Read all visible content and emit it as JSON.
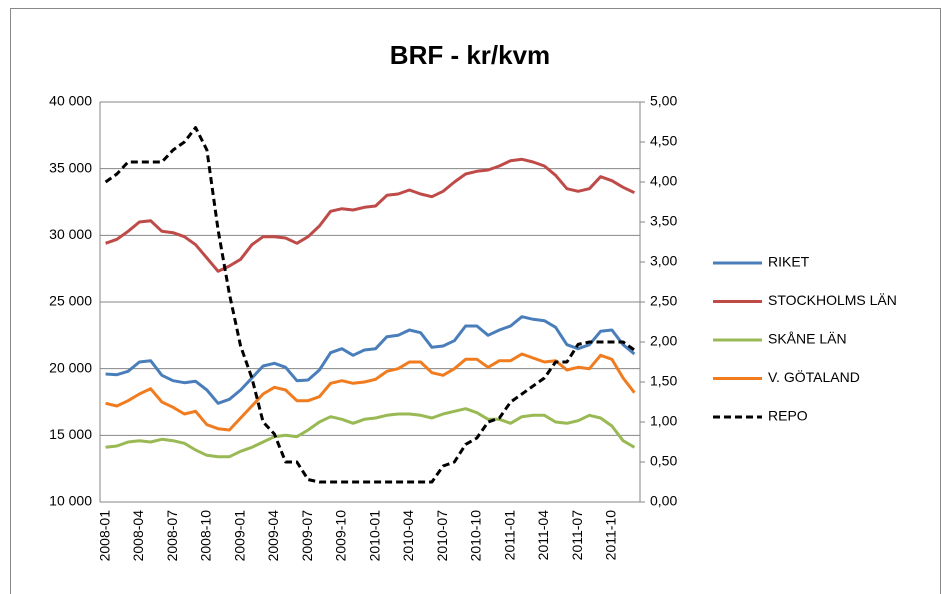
{
  "chart_data": {
    "type": "line",
    "title": "BRF - kr/kvm",
    "categories": [
      "2008-01",
      null,
      null,
      "2008-04",
      null,
      null,
      "2008-07",
      null,
      null,
      "2008-10",
      null,
      null,
      "2009-01",
      null,
      null,
      "2009-04",
      null,
      null,
      "2009-07",
      null,
      null,
      "2009-10",
      null,
      null,
      "2010-01",
      null,
      null,
      "2010-04",
      null,
      null,
      "2010-07",
      null,
      null,
      "2010-10",
      null,
      null,
      "2011-01",
      null,
      null,
      "2011-04",
      null,
      null,
      "2011-07",
      null,
      null,
      "2011-10",
      null,
      null
    ],
    "series": [
      {
        "name": "RIKET",
        "color": "#4a7ebb",
        "values": [
          19600,
          19550,
          19800,
          20500,
          20600,
          19500,
          19100,
          18950,
          19050,
          18400,
          17400,
          17700,
          18400,
          19300,
          20200,
          20400,
          20100,
          19100,
          19150,
          19900,
          21200,
          21500,
          21000,
          21400,
          21500,
          22400,
          22500,
          22900,
          22700,
          21600,
          21700,
          22100,
          23200,
          23200,
          22500,
          22900,
          23200,
          23900,
          23700,
          23600,
          23100,
          21800,
          21500,
          21800,
          22800,
          22900,
          21800,
          21100
        ]
      },
      {
        "name": "STOCKHOLMS LÄN",
        "color": "#be4b48",
        "values": [
          29400,
          29700,
          30300,
          31000,
          31100,
          30300,
          30200,
          29900,
          29300,
          28300,
          27300,
          27700,
          28200,
          29300,
          29900,
          29900,
          29800,
          29400,
          29900,
          30700,
          31800,
          32000,
          31900,
          32100,
          32200,
          33000,
          33100,
          33400,
          33100,
          32900,
          33300,
          34000,
          34600,
          34800,
          34900,
          35200,
          35600,
          35700,
          35500,
          35200,
          34500,
          33500,
          33300,
          33500,
          34400,
          34100,
          33600,
          33200
        ]
      },
      {
        "name": "SKÅNE LÄN",
        "color": "#98b954",
        "values": [
          14100,
          14200,
          14500,
          14600,
          14500,
          14700,
          14600,
          14400,
          13900,
          13500,
          13400,
          13400,
          13800,
          14100,
          14500,
          14900,
          15000,
          14900,
          15400,
          16000,
          16400,
          16200,
          15900,
          16200,
          16300,
          16500,
          16600,
          16600,
          16500,
          16300,
          16600,
          16800,
          17000,
          16700,
          16200,
          16200,
          15900,
          16400,
          16500,
          16500,
          16000,
          15900,
          16100,
          16500,
          16300,
          15700,
          14600,
          14100
        ]
      },
      {
        "name": "V. GÖTALAND",
        "color": "#f07c1f",
        "values": [
          17400,
          17200,
          17600,
          18100,
          18500,
          17500,
          17100,
          16600,
          16800,
          15800,
          15500,
          15400,
          16300,
          17200,
          18100,
          18600,
          18400,
          17600,
          17600,
          17900,
          18900,
          19100,
          18900,
          19000,
          19200,
          19800,
          20000,
          20500,
          20500,
          19700,
          19500,
          20000,
          20700,
          20700,
          20100,
          20600,
          20600,
          21100,
          20800,
          20500,
          20600,
          19900,
          20100,
          20000,
          21000,
          20700,
          19300,
          18200
        ]
      },
      {
        "name": "REPO",
        "color": "#000000",
        "axis": "y2",
        "line_style": "dashed",
        "values": [
          4.0,
          4.1,
          4.25,
          4.25,
          4.25,
          4.25,
          4.4,
          4.5,
          4.68,
          4.4,
          3.4,
          2.6,
          1.95,
          1.55,
          1.0,
          0.85,
          0.5,
          0.5,
          0.28,
          0.25,
          0.25,
          0.25,
          0.25,
          0.25,
          0.25,
          0.25,
          0.25,
          0.25,
          0.25,
          0.25,
          0.45,
          0.5,
          0.72,
          0.8,
          1.0,
          1.05,
          1.25,
          1.35,
          1.45,
          1.55,
          1.75,
          1.75,
          1.97,
          2.0,
          2.0,
          2.0,
          2.0,
          1.9
        ]
      }
    ],
    "ylim": [
      10000,
      40000
    ],
    "yticks": [
      {
        "value": 10000,
        "label": "10 000"
      },
      {
        "value": 15000,
        "label": "15 000"
      },
      {
        "value": 20000,
        "label": "20 000"
      },
      {
        "value": 25000,
        "label": "25 000"
      },
      {
        "value": 30000,
        "label": "30 000"
      },
      {
        "value": 35000,
        "label": "35 000"
      },
      {
        "value": 40000,
        "label": "40 000"
      }
    ],
    "y2lim": [
      0,
      5
    ],
    "y2ticks": [
      {
        "value": 0,
        "label": "0,00"
      },
      {
        "value": 0.5,
        "label": "0,50"
      },
      {
        "value": 1,
        "label": "1,00"
      },
      {
        "value": 1.5,
        "label": "1,50"
      },
      {
        "value": 2,
        "label": "2,00"
      },
      {
        "value": 2.5,
        "label": "2,50"
      },
      {
        "value": 3,
        "label": "3,00"
      },
      {
        "value": 3.5,
        "label": "3,50"
      },
      {
        "value": 4,
        "label": "4,00"
      },
      {
        "value": 4.5,
        "label": "4,50"
      },
      {
        "value": 5,
        "label": "5,00"
      }
    ],
    "grid": true,
    "legend": "right"
  }
}
